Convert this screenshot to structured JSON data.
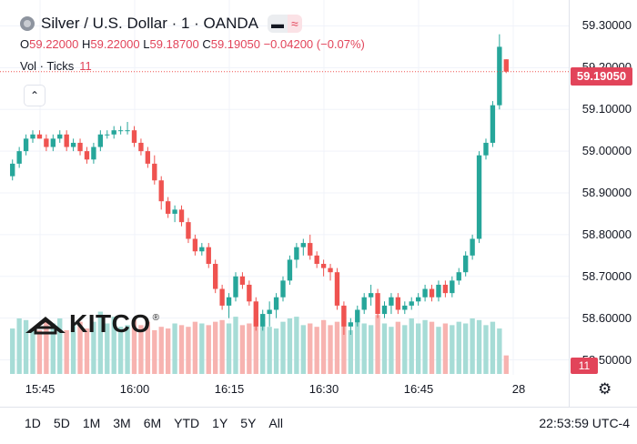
{
  "header": {
    "title": "Silver / U.S. Dollar · 1 · OANDA",
    "pill_left": "▬",
    "pill_right": "≈",
    "ohlc": {
      "o_label": "O",
      "o": "59.22000",
      "h_label": "H",
      "h": "59.22000",
      "l_label": "L",
      "l": "59.18700",
      "c_label": "C",
      "c": "59.19050",
      "change": "−0.04200 (−0.07%)"
    },
    "volume_label": "Vol · Ticks",
    "volume_value": "11"
  },
  "watermark": {
    "logo_text": "KITCO",
    "reg": "®"
  },
  "time_ranges": [
    "1D",
    "5D",
    "1M",
    "3M",
    "6M",
    "YTD",
    "1Y",
    "5Y",
    "All"
  ],
  "clock": "22:53:59 UTC-4",
  "colors": {
    "up": "#26a69a",
    "down": "#ef5350",
    "up_vol": "#a6dcd6",
    "down_vol": "#f7b3b0",
    "accent": "#e2445a"
  },
  "chart_data": {
    "type": "candlestick",
    "y_ticks": [
      "59.30000",
      "59.20000",
      "59.10000",
      "59.00000",
      "58.90000",
      "58.80000",
      "58.70000",
      "58.60000",
      "58.50000"
    ],
    "x_ticks": [
      "15:45",
      "16:00",
      "16:15",
      "16:30",
      "16:45",
      "28"
    ],
    "last_price_label": "59.19050",
    "last_volume_label": "11",
    "ylim": [
      58.4685,
      59.3185
    ],
    "candles": [
      [
        58.94,
        58.98,
        58.93,
        58.97
      ],
      [
        58.97,
        59.01,
        58.96,
        59.0
      ],
      [
        59.0,
        59.04,
        58.99,
        59.03
      ],
      [
        59.03,
        59.05,
        59.02,
        59.04
      ],
      [
        59.04,
        59.05,
        59.03,
        59.03
      ],
      [
        59.03,
        59.04,
        59.0,
        59.01
      ],
      [
        59.01,
        59.04,
        59.0,
        59.03
      ],
      [
        59.03,
        59.05,
        59.02,
        59.04
      ],
      [
        59.04,
        59.05,
        59.0,
        59.01
      ],
      [
        59.01,
        59.03,
        59.0,
        59.02
      ],
      [
        59.02,
        59.03,
        58.99,
        59.0
      ],
      [
        59.0,
        59.01,
        58.97,
        58.98
      ],
      [
        58.98,
        59.02,
        58.97,
        59.01
      ],
      [
        59.01,
        59.05,
        59.0,
        59.04
      ],
      [
        59.04,
        59.05,
        59.03,
        59.04
      ],
      [
        59.04,
        59.06,
        59.03,
        59.05
      ],
      [
        59.05,
        59.06,
        59.04,
        59.05
      ],
      [
        59.05,
        59.07,
        59.04,
        59.05
      ],
      [
        59.05,
        59.06,
        59.01,
        59.02
      ],
      [
        59.02,
        59.03,
        58.99,
        59.0
      ],
      [
        59.0,
        59.01,
        58.96,
        58.97
      ],
      [
        58.97,
        58.99,
        58.92,
        58.93
      ],
      [
        58.93,
        58.94,
        58.86,
        58.88
      ],
      [
        58.88,
        58.89,
        58.84,
        58.85
      ],
      [
        58.85,
        58.87,
        58.83,
        58.86
      ],
      [
        58.86,
        58.87,
        58.82,
        58.83
      ],
      [
        58.83,
        58.84,
        58.78,
        58.79
      ],
      [
        58.79,
        58.8,
        58.75,
        58.76
      ],
      [
        58.76,
        58.78,
        58.75,
        58.77
      ],
      [
        58.77,
        58.78,
        58.72,
        58.73
      ],
      [
        58.73,
        58.74,
        58.66,
        58.67
      ],
      [
        58.67,
        58.68,
        58.62,
        58.63
      ],
      [
        58.63,
        58.66,
        58.6,
        58.65
      ],
      [
        58.65,
        58.71,
        58.64,
        58.7
      ],
      [
        58.7,
        58.71,
        58.67,
        58.68
      ],
      [
        58.68,
        58.69,
        58.63,
        58.64
      ],
      [
        58.64,
        58.65,
        58.57,
        58.58
      ],
      [
        58.58,
        58.62,
        58.57,
        58.61
      ],
      [
        58.61,
        58.64,
        58.58,
        58.62
      ],
      [
        58.62,
        58.66,
        58.6,
        58.65
      ],
      [
        58.65,
        58.7,
        58.64,
        58.69
      ],
      [
        58.69,
        58.75,
        58.68,
        58.74
      ],
      [
        58.74,
        58.78,
        58.72,
        58.77
      ],
      [
        58.77,
        58.79,
        58.75,
        58.78
      ],
      [
        58.78,
        58.8,
        58.74,
        58.75
      ],
      [
        58.75,
        58.76,
        58.72,
        58.73
      ],
      [
        58.73,
        58.74,
        58.7,
        58.72
      ],
      [
        58.72,
        58.73,
        58.69,
        58.71
      ],
      [
        58.71,
        58.72,
        58.62,
        58.63
      ],
      [
        58.63,
        58.64,
        58.56,
        58.58
      ],
      [
        58.58,
        58.6,
        58.56,
        58.59
      ],
      [
        58.59,
        58.63,
        58.58,
        58.62
      ],
      [
        58.62,
        58.66,
        58.61,
        58.65
      ],
      [
        58.65,
        58.68,
        58.63,
        58.66
      ],
      [
        58.66,
        58.67,
        58.6,
        58.61
      ],
      [
        58.61,
        58.64,
        58.6,
        58.63
      ],
      [
        58.63,
        58.66,
        58.61,
        58.65
      ],
      [
        58.65,
        58.66,
        58.61,
        58.62
      ],
      [
        58.62,
        58.64,
        58.61,
        58.63
      ],
      [
        58.63,
        58.65,
        58.62,
        58.64
      ],
      [
        58.64,
        58.66,
        58.63,
        58.65
      ],
      [
        58.65,
        58.68,
        58.64,
        58.67
      ],
      [
        58.67,
        58.68,
        58.64,
        58.65
      ],
      [
        58.65,
        58.69,
        58.64,
        58.68
      ],
      [
        58.68,
        58.69,
        58.65,
        58.66
      ],
      [
        58.66,
        58.7,
        58.65,
        58.69
      ],
      [
        58.69,
        58.72,
        58.68,
        58.71
      ],
      [
        58.71,
        58.76,
        58.7,
        58.75
      ],
      [
        58.75,
        58.8,
        58.74,
        58.79
      ],
      [
        58.79,
        59.0,
        58.78,
        58.99
      ],
      [
        58.99,
        59.03,
        58.98,
        59.02
      ],
      [
        59.02,
        59.12,
        59.01,
        59.11
      ],
      [
        59.11,
        59.28,
        59.1,
        59.25
      ],
      [
        59.22,
        59.22,
        59.187,
        59.1905
      ]
    ],
    "volumes": [
      27,
      33,
      32,
      27,
      26,
      32,
      30,
      33,
      26,
      29,
      31,
      27,
      31,
      37,
      30,
      34,
      28,
      29,
      32,
      29,
      31,
      26,
      28,
      27,
      30,
      29,
      28,
      31,
      30,
      29,
      31,
      32,
      30,
      34,
      29,
      30,
      33,
      31,
      28,
      27,
      31,
      33,
      34,
      29,
      30,
      28,
      32,
      29,
      31,
      40,
      26,
      33,
      30,
      29,
      35,
      30,
      28,
      31,
      29,
      33,
      30,
      32,
      31,
      28,
      30,
      29,
      31,
      30,
      33,
      32,
      29,
      31,
      27,
      11
    ],
    "volume_ylim": [
      0,
      60
    ]
  }
}
